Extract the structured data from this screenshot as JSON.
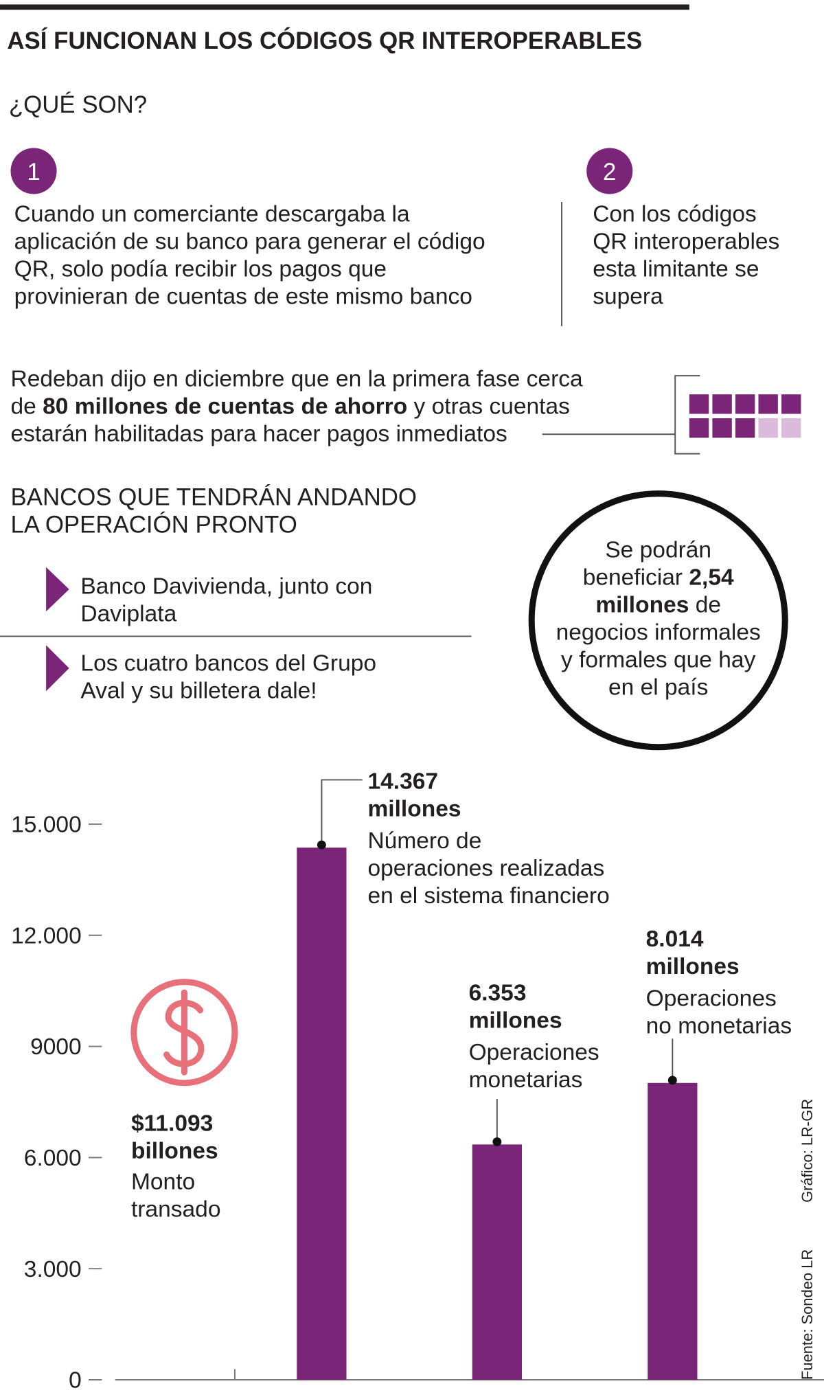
{
  "title": "ASÍ FUNCIONAN LOS CÓDIGOS QR INTEROPERABLES",
  "intro": {
    "heading": "¿QUÉ SON?",
    "steps": [
      {
        "number": "1",
        "lines": [
          "Cuando un comerciante descargaba la",
          "aplicación de su banco para generar el código",
          "QR, solo podía recibir los pagos que",
          "provinieran de cuentas de este mismo banco"
        ]
      },
      {
        "number": "2",
        "lines": [
          "Con los códigos",
          "QR interoperables",
          "esta limitante se",
          "supera"
        ]
      }
    ]
  },
  "note": {
    "lines": [
      [
        "Redeban dijo en diciembre que en la primera fase cerca"
      ],
      [
        "de ",
        "80 millones de cuentas de ahorro",
        " y otras cuentas"
      ],
      [
        "estarán habilitadas para hacer pagos inmediatos"
      ]
    ]
  },
  "banks": {
    "heading": [
      "BANCOS QUE TENDRÁN ANDANDO",
      "LA OPERACIÓN PRONTO"
    ],
    "items": [
      [
        "Banco Davivienda, junto con",
        "Daviplata"
      ],
      [
        "Los cuatro bancos del Grupo",
        "Aval y su billetera dale!"
      ]
    ]
  },
  "circle": {
    "lines": [
      [
        "Se podrán"
      ],
      [
        "beneficiar ",
        "2,54"
      ],
      [
        "millones",
        " de"
      ],
      [
        "negocios informales"
      ],
      [
        "y formales que hay"
      ],
      [
        "en el país"
      ]
    ]
  },
  "chart_data": {
    "type": "bar",
    "categories": [
      [
        "Número de",
        "operaciones realizadas",
        "en el sistema financiero"
      ],
      [
        "Operaciones",
        "monetarias"
      ],
      [
        "Operaciones",
        "no monetarias"
      ]
    ],
    "values": [
      14367,
      6353,
      8014
    ],
    "value_labels": [
      "14.367 millones",
      "6.353 millones",
      "8.014 millones"
    ],
    "color": "#7a2577",
    "ylim": [
      0,
      15000
    ],
    "yticks": [
      0,
      {
        "value": 3000,
        "label": "3.000"
      },
      {
        "value": 6000,
        "label": "6.000"
      },
      9000,
      {
        "value": 12000,
        "label": "12.000"
      },
      {
        "value": 15000,
        "label": "15.000"
      }
    ],
    "annotation": {
      "value_label": "$11.093 billones",
      "lines": [
        "Monto",
        "transado"
      ]
    },
    "credits": [
      "Gráfico: LR-GR",
      "Fuente: Sondeo LR"
    ]
  }
}
